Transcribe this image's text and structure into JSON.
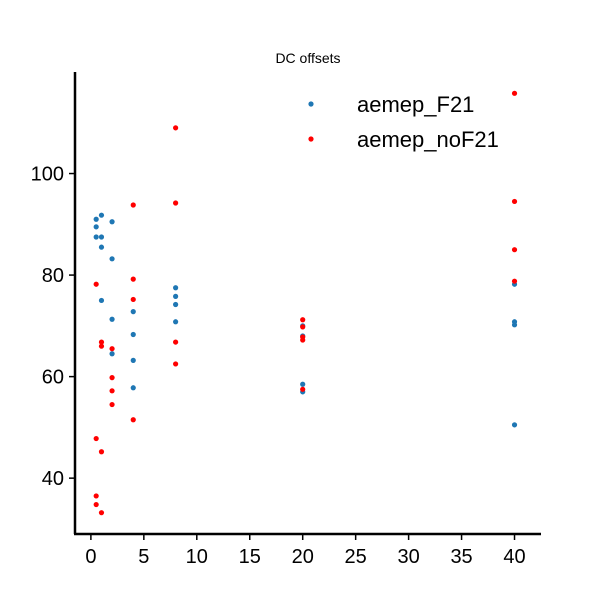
{
  "chart_data": {
    "type": "scatter",
    "title": "DC offsets",
    "xlabel": "",
    "ylabel": "",
    "xlim": [
      -1.5,
      42.5
    ],
    "ylim": [
      29,
      120
    ],
    "xticks": [
      0,
      5,
      10,
      15,
      20,
      25,
      30,
      35,
      40
    ],
    "xtick_labels": [
      "0",
      "5",
      "10",
      "15",
      "20",
      "25",
      "30",
      "35",
      "40"
    ],
    "yticks": [
      40,
      60,
      80,
      100
    ],
    "ytick_labels": [
      "40",
      "60",
      "80",
      "100"
    ],
    "grid": false,
    "legend_position": "top-right",
    "series": [
      {
        "name": "aemep_F21",
        "color": "#1f77b4",
        "points": [
          [
            0.5,
            91.0
          ],
          [
            0.5,
            89.5
          ],
          [
            0.5,
            87.5
          ],
          [
            1.0,
            91.8
          ],
          [
            1.0,
            87.5
          ],
          [
            1.0,
            85.5
          ],
          [
            1.0,
            75.0
          ],
          [
            2.0,
            90.5
          ],
          [
            2.0,
            83.2
          ],
          [
            2.0,
            71.3
          ],
          [
            2.0,
            64.5
          ],
          [
            4.0,
            72.8
          ],
          [
            4.0,
            68.3
          ],
          [
            4.0,
            63.2
          ],
          [
            4.0,
            57.8
          ],
          [
            8.0,
            77.5
          ],
          [
            8.0,
            75.8
          ],
          [
            8.0,
            74.2
          ],
          [
            8.0,
            70.8
          ],
          [
            20.0,
            70.0
          ],
          [
            20.0,
            68.0
          ],
          [
            20.0,
            58.5
          ],
          [
            20.0,
            57.0
          ],
          [
            40.0,
            78.2
          ],
          [
            40.0,
            70.8
          ],
          [
            40.0,
            70.2
          ],
          [
            40.0,
            50.5
          ]
        ]
      },
      {
        "name": "aemep_noF21",
        "color": "#ff0000",
        "points": [
          [
            0.5,
            78.2
          ],
          [
            0.5,
            47.8
          ],
          [
            0.5,
            36.5
          ],
          [
            0.5,
            34.8
          ],
          [
            1.0,
            66.8
          ],
          [
            1.0,
            66.0
          ],
          [
            1.0,
            45.2
          ],
          [
            1.0,
            33.2
          ],
          [
            2.0,
            65.5
          ],
          [
            2.0,
            59.8
          ],
          [
            2.0,
            57.2
          ],
          [
            2.0,
            54.5
          ],
          [
            4.0,
            93.8
          ],
          [
            4.0,
            79.2
          ],
          [
            4.0,
            75.2
          ],
          [
            4.0,
            51.5
          ],
          [
            8.0,
            109.0
          ],
          [
            8.0,
            94.2
          ],
          [
            8.0,
            66.8
          ],
          [
            8.0,
            62.5
          ],
          [
            20.0,
            71.2
          ],
          [
            20.0,
            69.8
          ],
          [
            20.0,
            67.8
          ],
          [
            20.0,
            67.2
          ],
          [
            20.0,
            57.5
          ],
          [
            40.0,
            115.8
          ],
          [
            40.0,
            94.5
          ],
          [
            40.0,
            85.0
          ],
          [
            40.0,
            78.8
          ]
        ]
      }
    ]
  }
}
